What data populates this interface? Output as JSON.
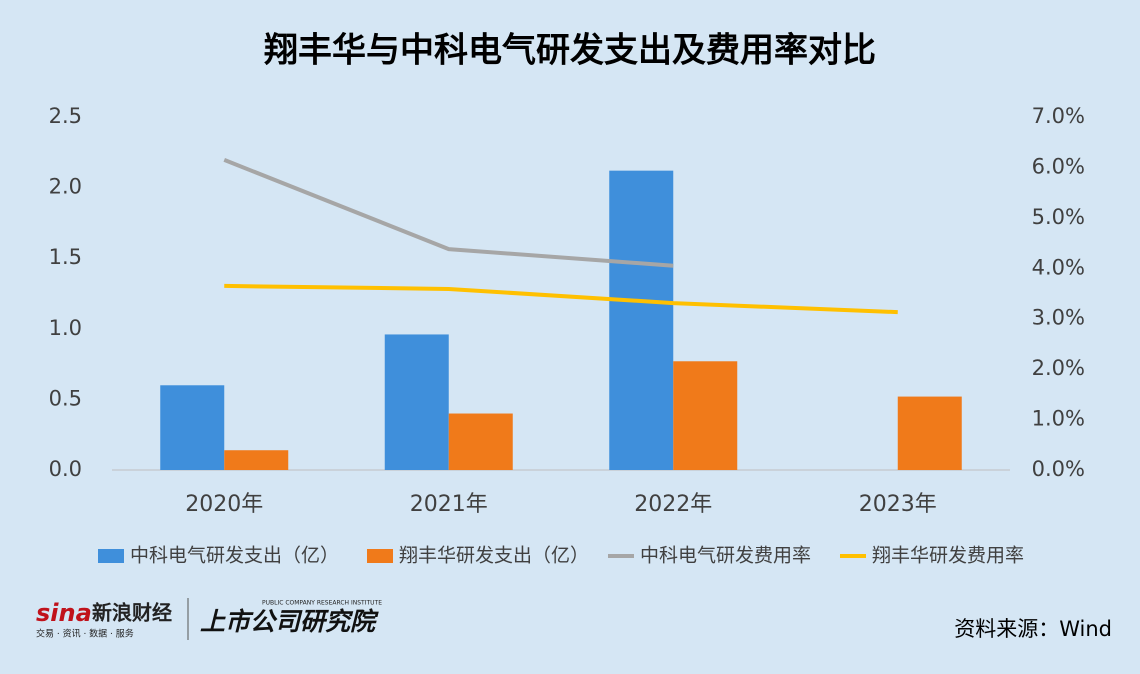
{
  "chart_data": {
    "type": "bar-line",
    "title": "翔丰华与中科电气研发支出及费用率对比",
    "categories": [
      "2020年",
      "2021年",
      "2022年",
      "2023年"
    ],
    "series": [
      {
        "name": "中科电气研发支出（亿）",
        "type": "bar",
        "color": "#3f8fdb",
        "values": [
          0.6,
          0.96,
          2.12,
          null
        ]
      },
      {
        "name": "翔丰华研发支出（亿）",
        "type": "bar",
        "color": "#f07a1a",
        "values": [
          0.14,
          0.4,
          0.77,
          0.52
        ]
      },
      {
        "name": "中科电气研发费用率",
        "type": "line",
        "axis": "y2",
        "color": "#a6a6a6",
        "values": [
          6.15,
          4.38,
          4.05,
          null
        ]
      },
      {
        "name": "翔丰华研发费用率",
        "type": "line",
        "axis": "y2",
        "color": "#ffc000",
        "values": [
          3.65,
          3.59,
          3.31,
          3.13
        ]
      }
    ],
    "ylim": [
      0,
      2.5
    ],
    "yticks": [
      {
        "value": 0,
        "label": "0.0"
      },
      0.5,
      {
        "value": 1,
        "label": "1.0"
      },
      1.5,
      {
        "value": 2,
        "label": "2.0"
      },
      2.5
    ],
    "y2lim": [
      0,
      7
    ],
    "y2ticks": [
      {
        "value": 0,
        "label": "0.0%"
      },
      {
        "value": 1,
        "label": "1.0%"
      },
      {
        "value": 2,
        "label": "2.0%"
      },
      {
        "value": 3,
        "label": "3.0%"
      },
      {
        "value": 4,
        "label": "4.0%"
      },
      {
        "value": 5,
        "label": "5.0%"
      },
      {
        "value": 6,
        "label": "6.0%"
      },
      {
        "value": 7,
        "label": "7.0%"
      }
    ],
    "grid": false,
    "legend": "bottom",
    "source": "资料来源：Wind",
    "brand": {
      "sina": "sina",
      "sina_name": "新浪财经",
      "sina_tagline": "交易 · 资讯 · 数据 · 服务",
      "institute": "上市公司研究院",
      "institute_en": "PUBLIC COMPANY RESEARCH INSTITUTE"
    }
  }
}
